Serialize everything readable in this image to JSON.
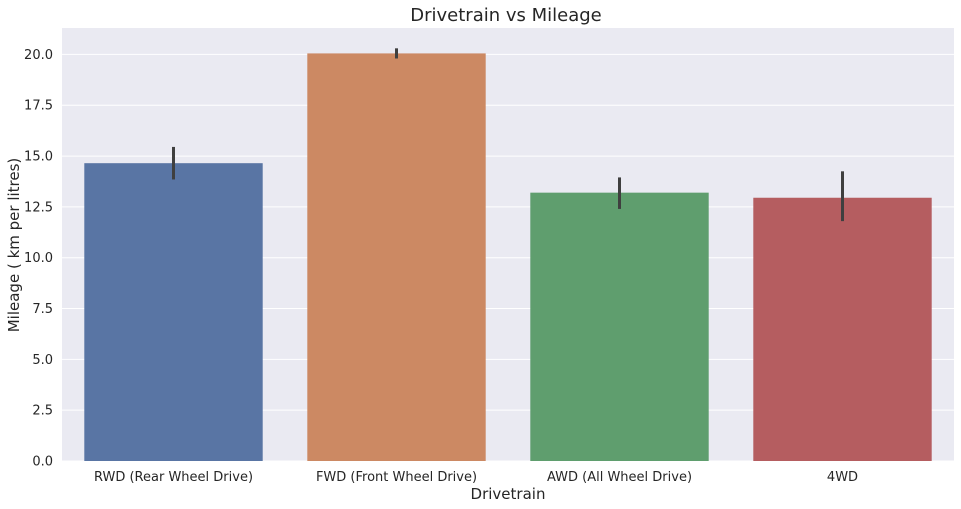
{
  "chart_data": {
    "type": "bar",
    "title": "Drivetrain vs Mileage",
    "xlabel": "Drivetrain",
    "ylabel": "Mileage ( km per litres)",
    "categories": [
      "RWD (Rear Wheel Drive)",
      "FWD (Front Wheel Drive)",
      "AWD (All Wheel Drive)",
      "4WD"
    ],
    "values": [
      14.65,
      20.05,
      13.2,
      12.95
    ],
    "error_low": [
      13.85,
      19.8,
      12.4,
      11.8
    ],
    "error_high": [
      15.45,
      20.3,
      13.95,
      14.25
    ],
    "ylim": [
      0,
      21.3
    ],
    "yticks": [
      "0.0",
      "2.5",
      "5.0",
      "7.5",
      "10.0",
      "12.5",
      "15.0",
      "17.5",
      "20.0"
    ],
    "grid": true,
    "colors": [
      "#5975a4",
      "#cc8963",
      "#5f9e6e",
      "#b55d60"
    ],
    "background": "#eaeaf2"
  }
}
